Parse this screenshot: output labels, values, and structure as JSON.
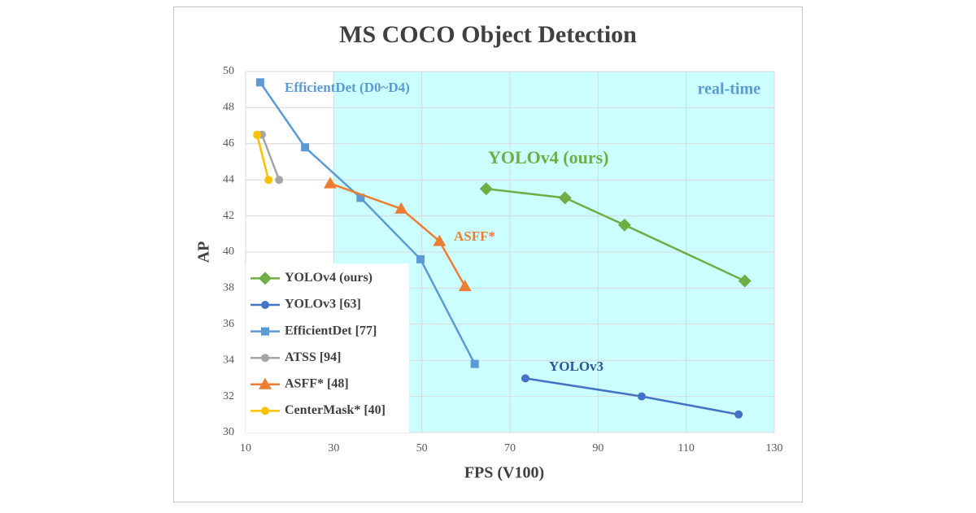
{
  "chart_data": {
    "type": "line",
    "title": "MS COCO Object Detection",
    "x_label": "FPS (V100)",
    "y_label": "AP",
    "xlim": [
      10,
      130
    ],
    "ylim": [
      30,
      50
    ],
    "xticks": [
      10,
      30,
      50,
      70,
      90,
      110,
      130
    ],
    "yticks": [
      30,
      32,
      34,
      36,
      38,
      40,
      42,
      44,
      46,
      48,
      50
    ],
    "grid": true,
    "legend": "lower left",
    "highlight": {
      "xlim": [
        30,
        130
      ],
      "color": "#ccffff"
    },
    "annotations": [
      {
        "text": "EfficientDet (D0~D4)",
        "color": "#5b9bd5"
      },
      {
        "text": "real-time",
        "color": "#5b9bd5"
      },
      {
        "text": "YOLOv4 (ours)",
        "color": "#70ad47"
      },
      {
        "text": "ASFF*",
        "color": "#ed7d31"
      },
      {
        "text": "YOLOv3",
        "color": "#2f5597"
      }
    ],
    "series": [
      {
        "name": "YOLOv4 (ours)",
        "color": "#70ad47",
        "marker": "diamond",
        "x": [
          64.6,
          82.5,
          96.0,
          123.3
        ],
        "values": [
          43.5,
          43.0,
          41.5,
          38.4
        ]
      },
      {
        "name": "YOLOv3 [63]",
        "color": "#4472c4",
        "marker": "circle",
        "x": [
          73.5,
          99.9,
          121.9
        ],
        "values": [
          33.0,
          32.0,
          31.0
        ]
      },
      {
        "name": "EfficientDet [77]",
        "color": "#5b9bd5",
        "marker": "square",
        "x": [
          13.3,
          23.5,
          36.1,
          49.7,
          62.0
        ],
        "values": [
          49.4,
          45.8,
          43.0,
          39.6,
          33.8
        ]
      },
      {
        "name": "ATSS [94]",
        "color": "#a5a5a5",
        "marker": "circle",
        "x": [
          13.7,
          17.6
        ],
        "values": [
          46.5,
          44.0
        ]
      },
      {
        "name": "ASFF* [48]",
        "color": "#ed7d31",
        "marker": "triangle",
        "x": [
          29.2,
          45.3,
          54.0,
          59.8
        ],
        "values": [
          43.8,
          42.4,
          40.6,
          38.1
        ]
      },
      {
        "name": "CenterMask* [40]",
        "color": "#ffc000",
        "marker": "circle",
        "x": [
          12.6,
          15.2
        ],
        "values": [
          46.5,
          44.0
        ]
      }
    ]
  }
}
